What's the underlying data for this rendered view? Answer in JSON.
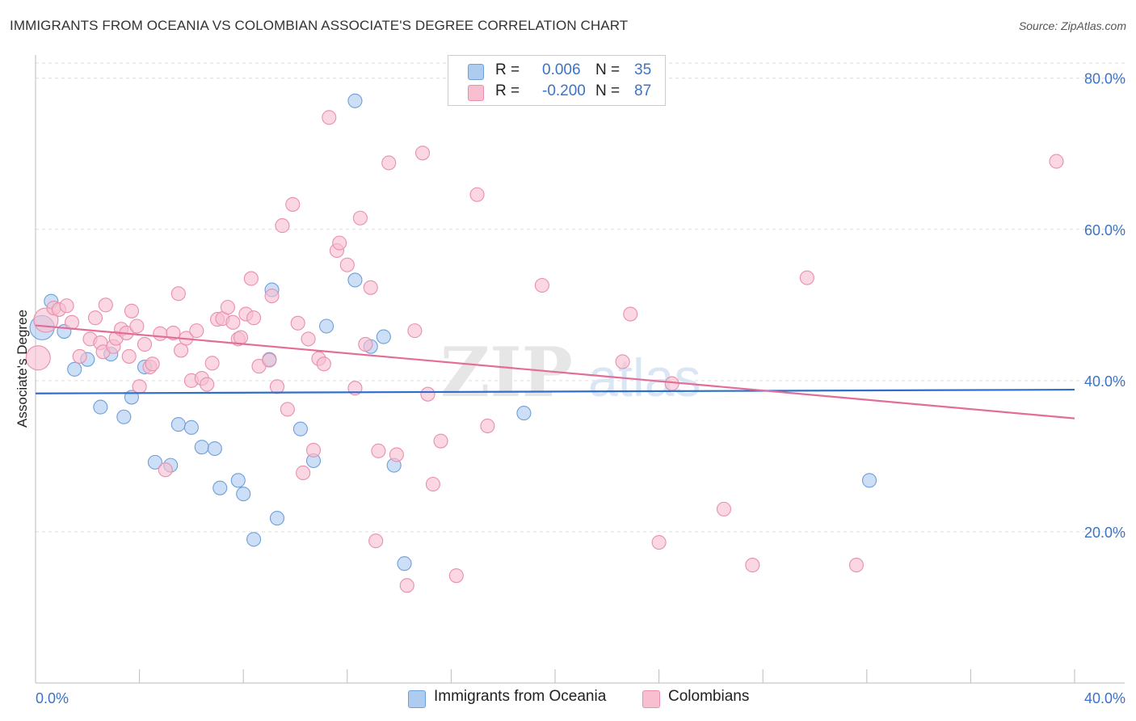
{
  "title": "IMMIGRANTS FROM OCEANIA VS COLOMBIAN ASSOCIATE'S DEGREE CORRELATION CHART",
  "source": "Source: ZipAtlas.com",
  "watermark": {
    "bold": "ZIP",
    "light": "atlas"
  },
  "stats": [
    {
      "r_label": "R =",
      "r_value": "0.006",
      "n_label": "N =",
      "n_value": "35"
    },
    {
      "r_label": "R =",
      "r_value": "-0.200",
      "n_label": "N =",
      "n_value": "87"
    }
  ],
  "colors": {
    "blue_fill": "#aecbf0",
    "blue_stroke": "#6f9fd8",
    "blue_line": "#2f6fcb",
    "pink_fill": "#f7bfd0",
    "pink_stroke": "#e98fac",
    "pink_line": "#e36d98",
    "axis_text": "#3b73c7",
    "grid": "#dddddd"
  },
  "chart_data": {
    "type": "scatter",
    "title": "IMMIGRANTS FROM OCEANIA VS COLOMBIAN ASSOCIATE'S DEGREE CORRELATION CHART",
    "xlabel": "",
    "ylabel": "Associate's Degree",
    "xlim": [
      0,
      40
    ],
    "ylim": [
      0,
      80
    ],
    "x_tick_labels": [
      "0.0%",
      "40.0%"
    ],
    "y_tick_values": [
      20,
      40,
      60,
      80
    ],
    "y_tick_labels": [
      "20.0%",
      "40.0%",
      "60.0%",
      "80.0%"
    ],
    "grid": true,
    "legend_position": "bottom-center",
    "series": [
      {
        "name": "Immigrants from Oceania",
        "color": "#aecbf0",
        "trend": {
          "x": [
            0,
            40
          ],
          "y": [
            38.3,
            38.8
          ]
        },
        "points": [
          {
            "x": 0.25,
            "y": 47.0,
            "big": true
          },
          {
            "x": 0.6,
            "y": 50.5
          },
          {
            "x": 1.1,
            "y": 46.5
          },
          {
            "x": 1.5,
            "y": 41.5
          },
          {
            "x": 2.0,
            "y": 42.8
          },
          {
            "x": 2.5,
            "y": 36.5
          },
          {
            "x": 2.9,
            "y": 43.5
          },
          {
            "x": 3.4,
            "y": 35.2
          },
          {
            "x": 3.7,
            "y": 37.8
          },
          {
            "x": 4.2,
            "y": 41.8
          },
          {
            "x": 4.6,
            "y": 29.2
          },
          {
            "x": 5.2,
            "y": 28.8
          },
          {
            "x": 5.5,
            "y": 34.2
          },
          {
            "x": 6.0,
            "y": 33.8
          },
          {
            "x": 6.4,
            "y": 31.2
          },
          {
            "x": 6.9,
            "y": 31.0
          },
          {
            "x": 7.1,
            "y": 25.8
          },
          {
            "x": 7.8,
            "y": 26.8
          },
          {
            "x": 8.0,
            "y": 25.0
          },
          {
            "x": 8.4,
            "y": 19.0
          },
          {
            "x": 9.1,
            "y": 52.0
          },
          {
            "x": 9.3,
            "y": 21.8
          },
          {
            "x": 9.0,
            "y": 42.8
          },
          {
            "x": 10.2,
            "y": 33.6
          },
          {
            "x": 10.7,
            "y": 29.4
          },
          {
            "x": 11.2,
            "y": 47.2
          },
          {
            "x": 12.3,
            "y": 53.3
          },
          {
            "x": 12.3,
            "y": 77.0
          },
          {
            "x": 12.9,
            "y": 44.5
          },
          {
            "x": 13.4,
            "y": 45.8
          },
          {
            "x": 13.8,
            "y": 28.8
          },
          {
            "x": 14.2,
            "y": 15.8
          },
          {
            "x": 18.8,
            "y": 35.7
          },
          {
            "x": 32.1,
            "y": 26.8
          },
          {
            "x": 18.2,
            "y": 80.0
          }
        ]
      },
      {
        "name": "Colombians",
        "color": "#f7bfd0",
        "trend": {
          "x": [
            0,
            40
          ],
          "y": [
            47.3,
            35.0
          ]
        },
        "points": [
          {
            "x": 0.1,
            "y": 43.0,
            "big": true
          },
          {
            "x": 0.4,
            "y": 48.0,
            "big": true
          },
          {
            "x": 0.7,
            "y": 49.6
          },
          {
            "x": 0.9,
            "y": 49.4
          },
          {
            "x": 1.2,
            "y": 49.9
          },
          {
            "x": 1.4,
            "y": 47.7
          },
          {
            "x": 1.7,
            "y": 43.2
          },
          {
            "x": 2.1,
            "y": 45.5
          },
          {
            "x": 2.3,
            "y": 48.3
          },
          {
            "x": 2.5,
            "y": 45.0
          },
          {
            "x": 2.6,
            "y": 43.8
          },
          {
            "x": 2.7,
            "y": 50.0
          },
          {
            "x": 3.0,
            "y": 44.5
          },
          {
            "x": 3.1,
            "y": 45.6
          },
          {
            "x": 3.3,
            "y": 46.8
          },
          {
            "x": 3.5,
            "y": 46.3
          },
          {
            "x": 3.6,
            "y": 43.2
          },
          {
            "x": 3.7,
            "y": 49.2
          },
          {
            "x": 3.9,
            "y": 47.2
          },
          {
            "x": 4.0,
            "y": 39.2
          },
          {
            "x": 4.2,
            "y": 44.8
          },
          {
            "x": 4.4,
            "y": 41.8
          },
          {
            "x": 4.5,
            "y": 42.2
          },
          {
            "x": 4.8,
            "y": 46.2
          },
          {
            "x": 5.0,
            "y": 28.2
          },
          {
            "x": 5.3,
            "y": 46.3
          },
          {
            "x": 5.5,
            "y": 51.5
          },
          {
            "x": 5.6,
            "y": 44.0
          },
          {
            "x": 5.8,
            "y": 45.6
          },
          {
            "x": 6.0,
            "y": 40.0
          },
          {
            "x": 6.2,
            "y": 46.6
          },
          {
            "x": 6.4,
            "y": 40.3
          },
          {
            "x": 6.6,
            "y": 39.5
          },
          {
            "x": 6.8,
            "y": 42.3
          },
          {
            "x": 7.0,
            "y": 48.1
          },
          {
            "x": 7.2,
            "y": 48.2
          },
          {
            "x": 7.4,
            "y": 49.7
          },
          {
            "x": 7.6,
            "y": 47.7
          },
          {
            "x": 7.8,
            "y": 45.5
          },
          {
            "x": 7.9,
            "y": 45.7
          },
          {
            "x": 8.1,
            "y": 48.8
          },
          {
            "x": 8.3,
            "y": 53.5
          },
          {
            "x": 8.4,
            "y": 48.3
          },
          {
            "x": 8.6,
            "y": 41.9
          },
          {
            "x": 9.0,
            "y": 42.7
          },
          {
            "x": 9.1,
            "y": 51.2
          },
          {
            "x": 9.3,
            "y": 39.2
          },
          {
            "x": 9.5,
            "y": 60.5
          },
          {
            "x": 9.7,
            "y": 36.2
          },
          {
            "x": 9.9,
            "y": 63.3
          },
          {
            "x": 10.1,
            "y": 47.6
          },
          {
            "x": 10.3,
            "y": 27.8
          },
          {
            "x": 10.5,
            "y": 45.5
          },
          {
            "x": 10.7,
            "y": 30.8
          },
          {
            "x": 10.9,
            "y": 42.9
          },
          {
            "x": 11.1,
            "y": 42.2
          },
          {
            "x": 11.3,
            "y": 74.8
          },
          {
            "x": 11.6,
            "y": 57.2
          },
          {
            "x": 11.7,
            "y": 58.2
          },
          {
            "x": 12.0,
            "y": 55.3
          },
          {
            "x": 12.3,
            "y": 39.0
          },
          {
            "x": 12.5,
            "y": 61.5
          },
          {
            "x": 12.7,
            "y": 44.8
          },
          {
            "x": 12.9,
            "y": 52.3
          },
          {
            "x": 13.1,
            "y": 18.8
          },
          {
            "x": 13.2,
            "y": 30.7
          },
          {
            "x": 13.6,
            "y": 68.8
          },
          {
            "x": 13.9,
            "y": 30.2
          },
          {
            "x": 14.3,
            "y": 12.9
          },
          {
            "x": 14.6,
            "y": 46.6
          },
          {
            "x": 14.9,
            "y": 70.1
          },
          {
            "x": 15.1,
            "y": 38.2
          },
          {
            "x": 15.3,
            "y": 26.3
          },
          {
            "x": 15.6,
            "y": 32.0
          },
          {
            "x": 16.2,
            "y": 14.2
          },
          {
            "x": 17.0,
            "y": 64.6
          },
          {
            "x": 17.4,
            "y": 34.0
          },
          {
            "x": 19.5,
            "y": 52.6
          },
          {
            "x": 22.6,
            "y": 42.5
          },
          {
            "x": 22.9,
            "y": 48.8
          },
          {
            "x": 24.0,
            "y": 18.6
          },
          {
            "x": 24.5,
            "y": 39.6
          },
          {
            "x": 26.5,
            "y": 23.0
          },
          {
            "x": 27.6,
            "y": 15.6
          },
          {
            "x": 29.7,
            "y": 53.6
          },
          {
            "x": 31.6,
            "y": 15.6
          },
          {
            "x": 39.3,
            "y": 69.0
          }
        ]
      }
    ]
  }
}
